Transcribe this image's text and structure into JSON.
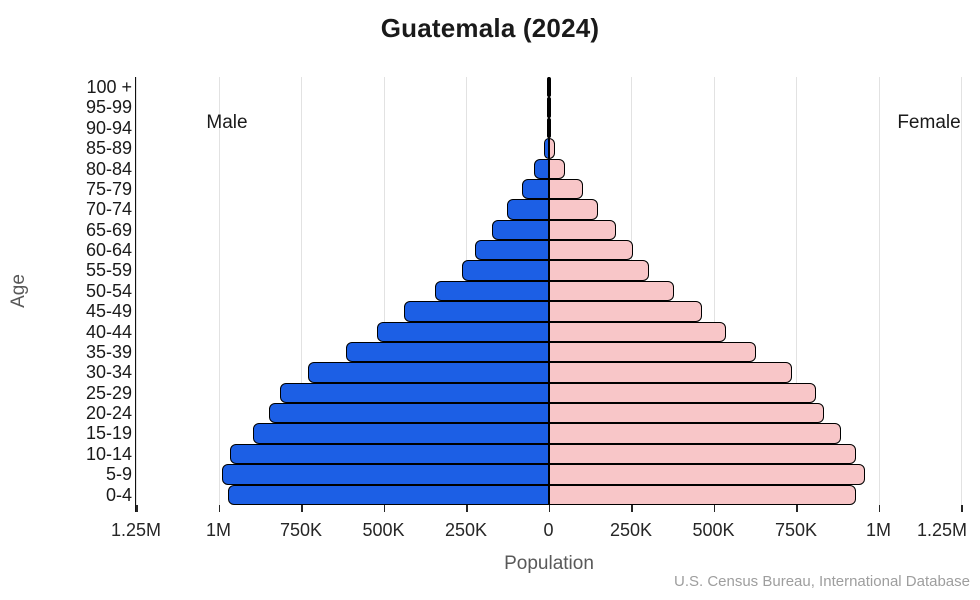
{
  "title": "Guatemala (2024)",
  "source": "U.S. Census Bureau, International Database",
  "axes": {
    "y_label": "Age",
    "x_label": "Population",
    "x_tick_labels": [
      "1.25M",
      "1M",
      "750K",
      "500K",
      "250K",
      "0",
      "250K",
      "500K",
      "750K",
      "1M",
      "1.25M"
    ]
  },
  "annotations": {
    "male": "Male",
    "female": "Female"
  },
  "colors": {
    "male": "#1c5fe5",
    "female": "#f8c6c8",
    "outline": "#000000",
    "gridline": "#e2e2e2",
    "tick_text": "#262626",
    "axis_title_text": "#595959",
    "source_text": "#9e9e9e"
  },
  "chart_data": {
    "type": "bar",
    "subtype": "population_pyramid",
    "title": "Guatemala (2024)",
    "xlabel": "Population",
    "ylabel": "Age",
    "axis_max_abs": 1250000,
    "x_tick_interval": 250000,
    "grid": "vertical",
    "legend_position": "in-plot text annotations (Male upper-left, Female upper-right)",
    "categories": [
      "0-4",
      "5-9",
      "10-14",
      "15-19",
      "20-24",
      "25-29",
      "30-34",
      "35-39",
      "40-44",
      "45-49",
      "50-54",
      "55-59",
      "60-64",
      "65-69",
      "70-74",
      "75-79",
      "80-84",
      "85-89",
      "90-94",
      "95-99",
      "100 +"
    ],
    "series": [
      {
        "name": "Male",
        "side": "left",
        "color": "#1c5fe5",
        "values": [
          970000,
          989000,
          965000,
          896000,
          846000,
          815000,
          730000,
          615000,
          519000,
          437000,
          343000,
          262000,
          222000,
          172000,
          125000,
          80000,
          45000,
          13000,
          4000,
          1200,
          400
        ]
      },
      {
        "name": "Female",
        "side": "right",
        "color": "#f8c6c8",
        "values": [
          933000,
          958000,
          932000,
          887000,
          834000,
          811000,
          738000,
          629000,
          539000,
          466000,
          379000,
          304000,
          257000,
          206000,
          149000,
          104000,
          51000,
          20000,
          8000,
          2500,
          900
        ]
      }
    ]
  }
}
